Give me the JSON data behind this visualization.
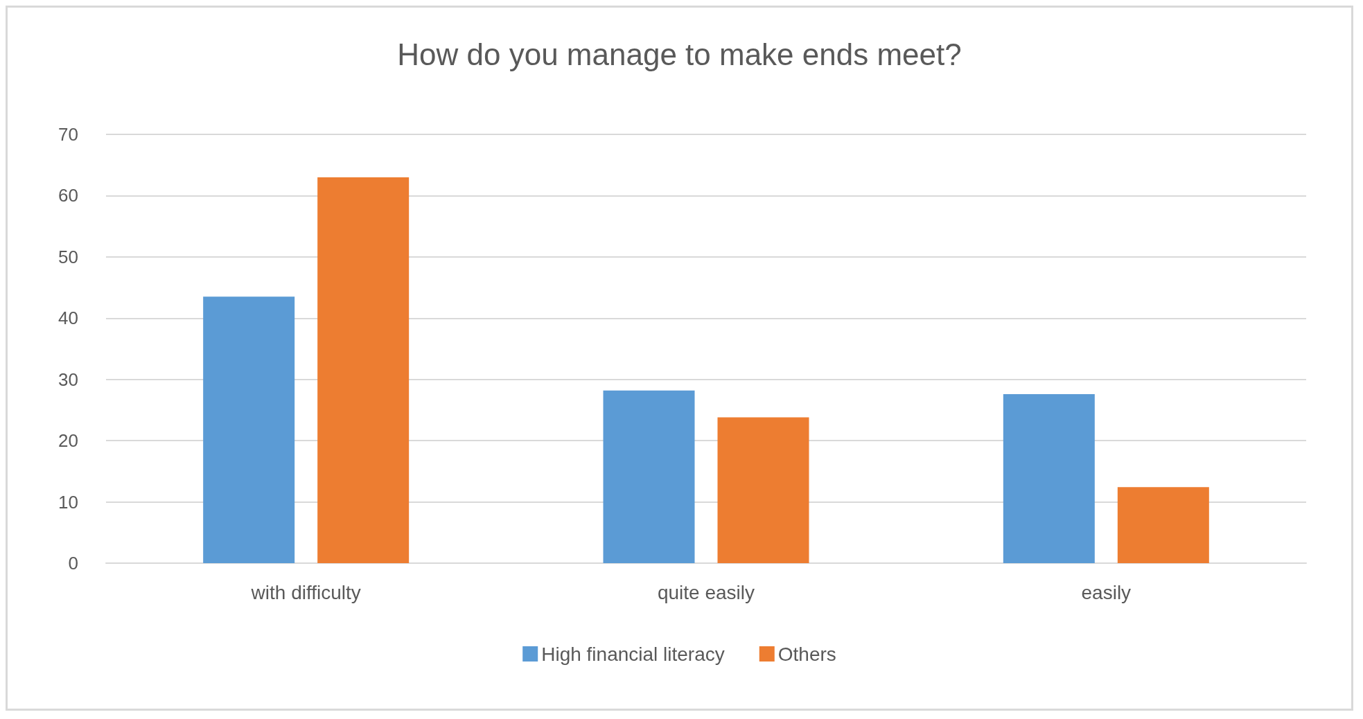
{
  "chart_data": {
    "type": "bar",
    "title": "How do you manage to make ends meet?",
    "categories": [
      "with difficulty",
      "quite easily",
      "easily"
    ],
    "series": [
      {
        "name": "High financial literacy",
        "color": "#5b9bd5",
        "values": [
          43.5,
          28.2,
          27.6
        ]
      },
      {
        "name": "Others",
        "color": "#ed7d31",
        "values": [
          63,
          23.8,
          12.4
        ]
      }
    ],
    "ylim": [
      0,
      70
    ],
    "yticks": [
      0,
      10,
      20,
      30,
      40,
      50,
      60,
      70
    ],
    "grid": "y",
    "legend": "bottom"
  }
}
